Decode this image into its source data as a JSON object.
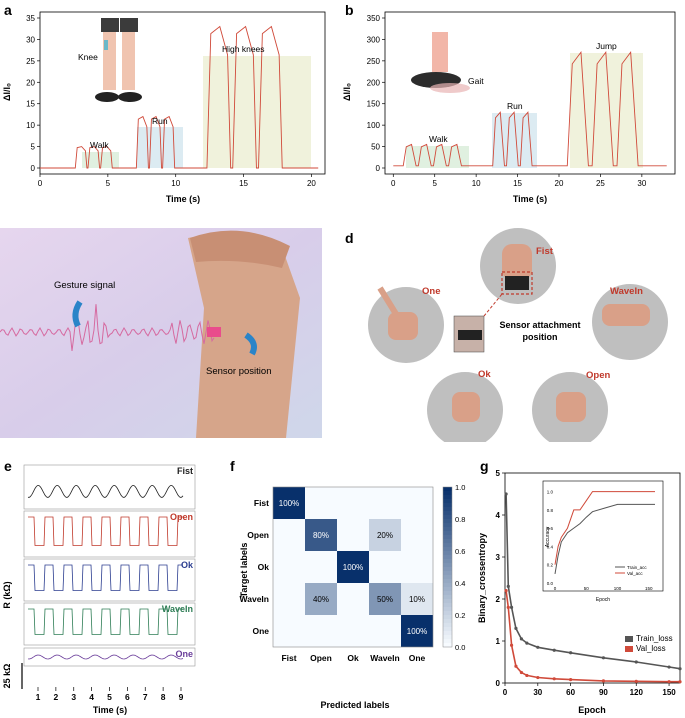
{
  "panels": {
    "a": {
      "letter": "a",
      "ylabel": "ΔI/I₀",
      "xlabel": "Time (s)",
      "yticks": [
        "0",
        "5",
        "10",
        "15",
        "20",
        "25",
        "30",
        "35"
      ],
      "xticks": [
        "0",
        "5",
        "10",
        "15",
        "20"
      ],
      "labels": {
        "knee": "Knee",
        "walk": "Walk",
        "run": "Run",
        "high": "High knees"
      }
    },
    "b": {
      "letter": "b",
      "ylabel": "ΔI/I₀",
      "xlabel": "Time (s)",
      "yticks": [
        "0",
        "50",
        "100",
        "150",
        "200",
        "250",
        "300",
        "350"
      ],
      "xticks": [
        "0",
        "5",
        "10",
        "15",
        "20",
        "25",
        "30"
      ],
      "labels": {
        "gait": "Gait",
        "walk": "Walk",
        "run": "Run",
        "jump": "Jump"
      }
    },
    "c": {
      "letter": "c",
      "gesture": "Gesture signal",
      "sensor": "Sensor position"
    },
    "d": {
      "letter": "d",
      "fist": "Fist",
      "one": "One",
      "wavein": "WaveIn",
      "ok": "Ok",
      "open": "Open",
      "attach1": "Sensor attachment",
      "attach2": "position"
    },
    "e": {
      "letter": "e",
      "traces": [
        "Fist",
        "Open",
        "Ok",
        "WaveIn",
        "One"
      ],
      "colors": [
        "#222222",
        "#c0392b",
        "#2c3e90",
        "#2e7d55",
        "#6a3d9a"
      ],
      "ylabel": "R (kΩ)",
      "scale": "25 kΩ",
      "xlabel": "Time (s)",
      "xticks": [
        "1",
        "2",
        "3",
        "4",
        "5",
        "6",
        "7",
        "8",
        "9"
      ]
    },
    "f": {
      "letter": "f",
      "ylabel": "Target labels",
      "xlabel": "Predicted labels",
      "classes": [
        "Fist",
        "Open",
        "Ok",
        "WaveIn",
        "One"
      ],
      "colorbar_ticks": [
        "0.0",
        "0.2",
        "0.4",
        "0.6",
        "0.8",
        "1.0"
      ]
    },
    "g": {
      "letter": "g",
      "ylabel": "Binary_crossentropy",
      "xlabel": "Epoch",
      "yticks": [
        "0",
        "1",
        "2",
        "3",
        "4",
        "5"
      ],
      "xticks": [
        "0",
        "30",
        "60",
        "90",
        "120",
        "150"
      ],
      "inset_ylabel": "Accuracy",
      "inset_xlabel": "Epoch",
      "inset_yticks": [
        "0.0",
        "0.2",
        "0.4",
        "0.6",
        "0.8",
        "1.0"
      ],
      "inset_xticks": [
        "0",
        "50",
        "100",
        "150"
      ]
    }
  },
  "chart_data": [
    {
      "type": "line",
      "panel": "a",
      "xlabel": "Time (s)",
      "ylabel": "ΔI/I₀",
      "xlim": [
        0,
        21
      ],
      "ylim": [
        0,
        37
      ],
      "segments": [
        {
          "name": "Walk",
          "x_range": [
            2.5,
            5.5
          ],
          "peak": 5
        },
        {
          "name": "Run",
          "x_range": [
            7,
            10
          ],
          "peak": 12
        },
        {
          "name": "High knees",
          "x_range": [
            12,
            18
          ],
          "peak": 33
        }
      ]
    },
    {
      "type": "line",
      "panel": "b",
      "xlabel": "Time (s)",
      "ylabel": "ΔI/I₀",
      "xlim": [
        -1,
        34
      ],
      "ylim": [
        0,
        370
      ],
      "segments": [
        {
          "name": "Walk",
          "x_range": [
            1,
            9
          ],
          "peak": 55
        },
        {
          "name": "Run",
          "x_range": [
            12,
            17
          ],
          "peak": 130
        },
        {
          "name": "Jump",
          "x_range": [
            21,
            30
          ],
          "peak": 270
        }
      ]
    },
    {
      "type": "heatmap",
      "panel": "f",
      "ylabel": "Target labels",
      "xlabel": "Predicted labels",
      "rows": [
        "Fist",
        "Open",
        "Ok",
        "WaveIn",
        "One"
      ],
      "cols": [
        "Fist",
        "Open",
        "Ok",
        "WaveIn",
        "One"
      ],
      "values": [
        [
          1.0,
          0,
          0,
          0,
          0
        ],
        [
          0,
          0.8,
          0,
          0.2,
          0
        ],
        [
          0,
          0,
          1.0,
          0,
          0
        ],
        [
          0,
          0.4,
          0,
          0.5,
          0.1
        ],
        [
          0,
          0,
          0,
          0,
          1.0
        ]
      ],
      "cell_labels": [
        [
          "100%",
          "",
          "",
          "",
          ""
        ],
        [
          "",
          "80%",
          "",
          "20%",
          ""
        ],
        [
          "",
          "",
          "100%",
          "",
          ""
        ],
        [
          "",
          "40%",
          "",
          "50%",
          "10%"
        ],
        [
          "",
          "",
          "",
          "",
          "100%"
        ]
      ]
    },
    {
      "type": "line",
      "panel": "g",
      "xlabel": "Epoch",
      "ylabel": "Binary_crossentropy",
      "xlim": [
        0,
        160
      ],
      "ylim": [
        0,
        5
      ],
      "series": [
        {
          "name": "Train_loss",
          "color": "#555555",
          "x": [
            1,
            3,
            6,
            10,
            15,
            20,
            30,
            45,
            60,
            90,
            120,
            150,
            160
          ],
          "values": [
            4.5,
            2.3,
            1.8,
            1.3,
            1.05,
            0.95,
            0.85,
            0.78,
            0.72,
            0.6,
            0.5,
            0.38,
            0.34
          ]
        },
        {
          "name": "Val_loss",
          "color": "#d04a3a",
          "x": [
            1,
            3,
            6,
            10,
            15,
            20,
            30,
            45,
            60,
            90,
            120,
            150,
            160
          ],
          "values": [
            2.2,
            1.8,
            0.9,
            0.4,
            0.25,
            0.18,
            0.13,
            0.1,
            0.08,
            0.05,
            0.04,
            0.03,
            0.03
          ]
        }
      ]
    },
    {
      "type": "line",
      "panel": "g-inset",
      "xlabel": "Epoch",
      "ylabel": "Accuracy",
      "xlim": [
        0,
        160
      ],
      "ylim": [
        0,
        1.05
      ],
      "series": [
        {
          "name": "Train_acc",
          "color": "#555555",
          "x": [
            0,
            5,
            10,
            20,
            30,
            40,
            50,
            60,
            80,
            100,
            160
          ],
          "values": [
            0.1,
            0.3,
            0.45,
            0.55,
            0.6,
            0.65,
            0.72,
            0.78,
            0.82,
            0.86,
            0.86
          ]
        },
        {
          "name": "Val_acc",
          "color": "#d04a3a",
          "x": [
            0,
            5,
            10,
            20,
            30,
            40,
            50,
            60,
            80,
            100,
            160
          ],
          "values": [
            0.2,
            0.4,
            0.5,
            0.6,
            0.8,
            0.8,
            0.9,
            1.0,
            1.0,
            1.0,
            1.0
          ]
        }
      ]
    }
  ]
}
